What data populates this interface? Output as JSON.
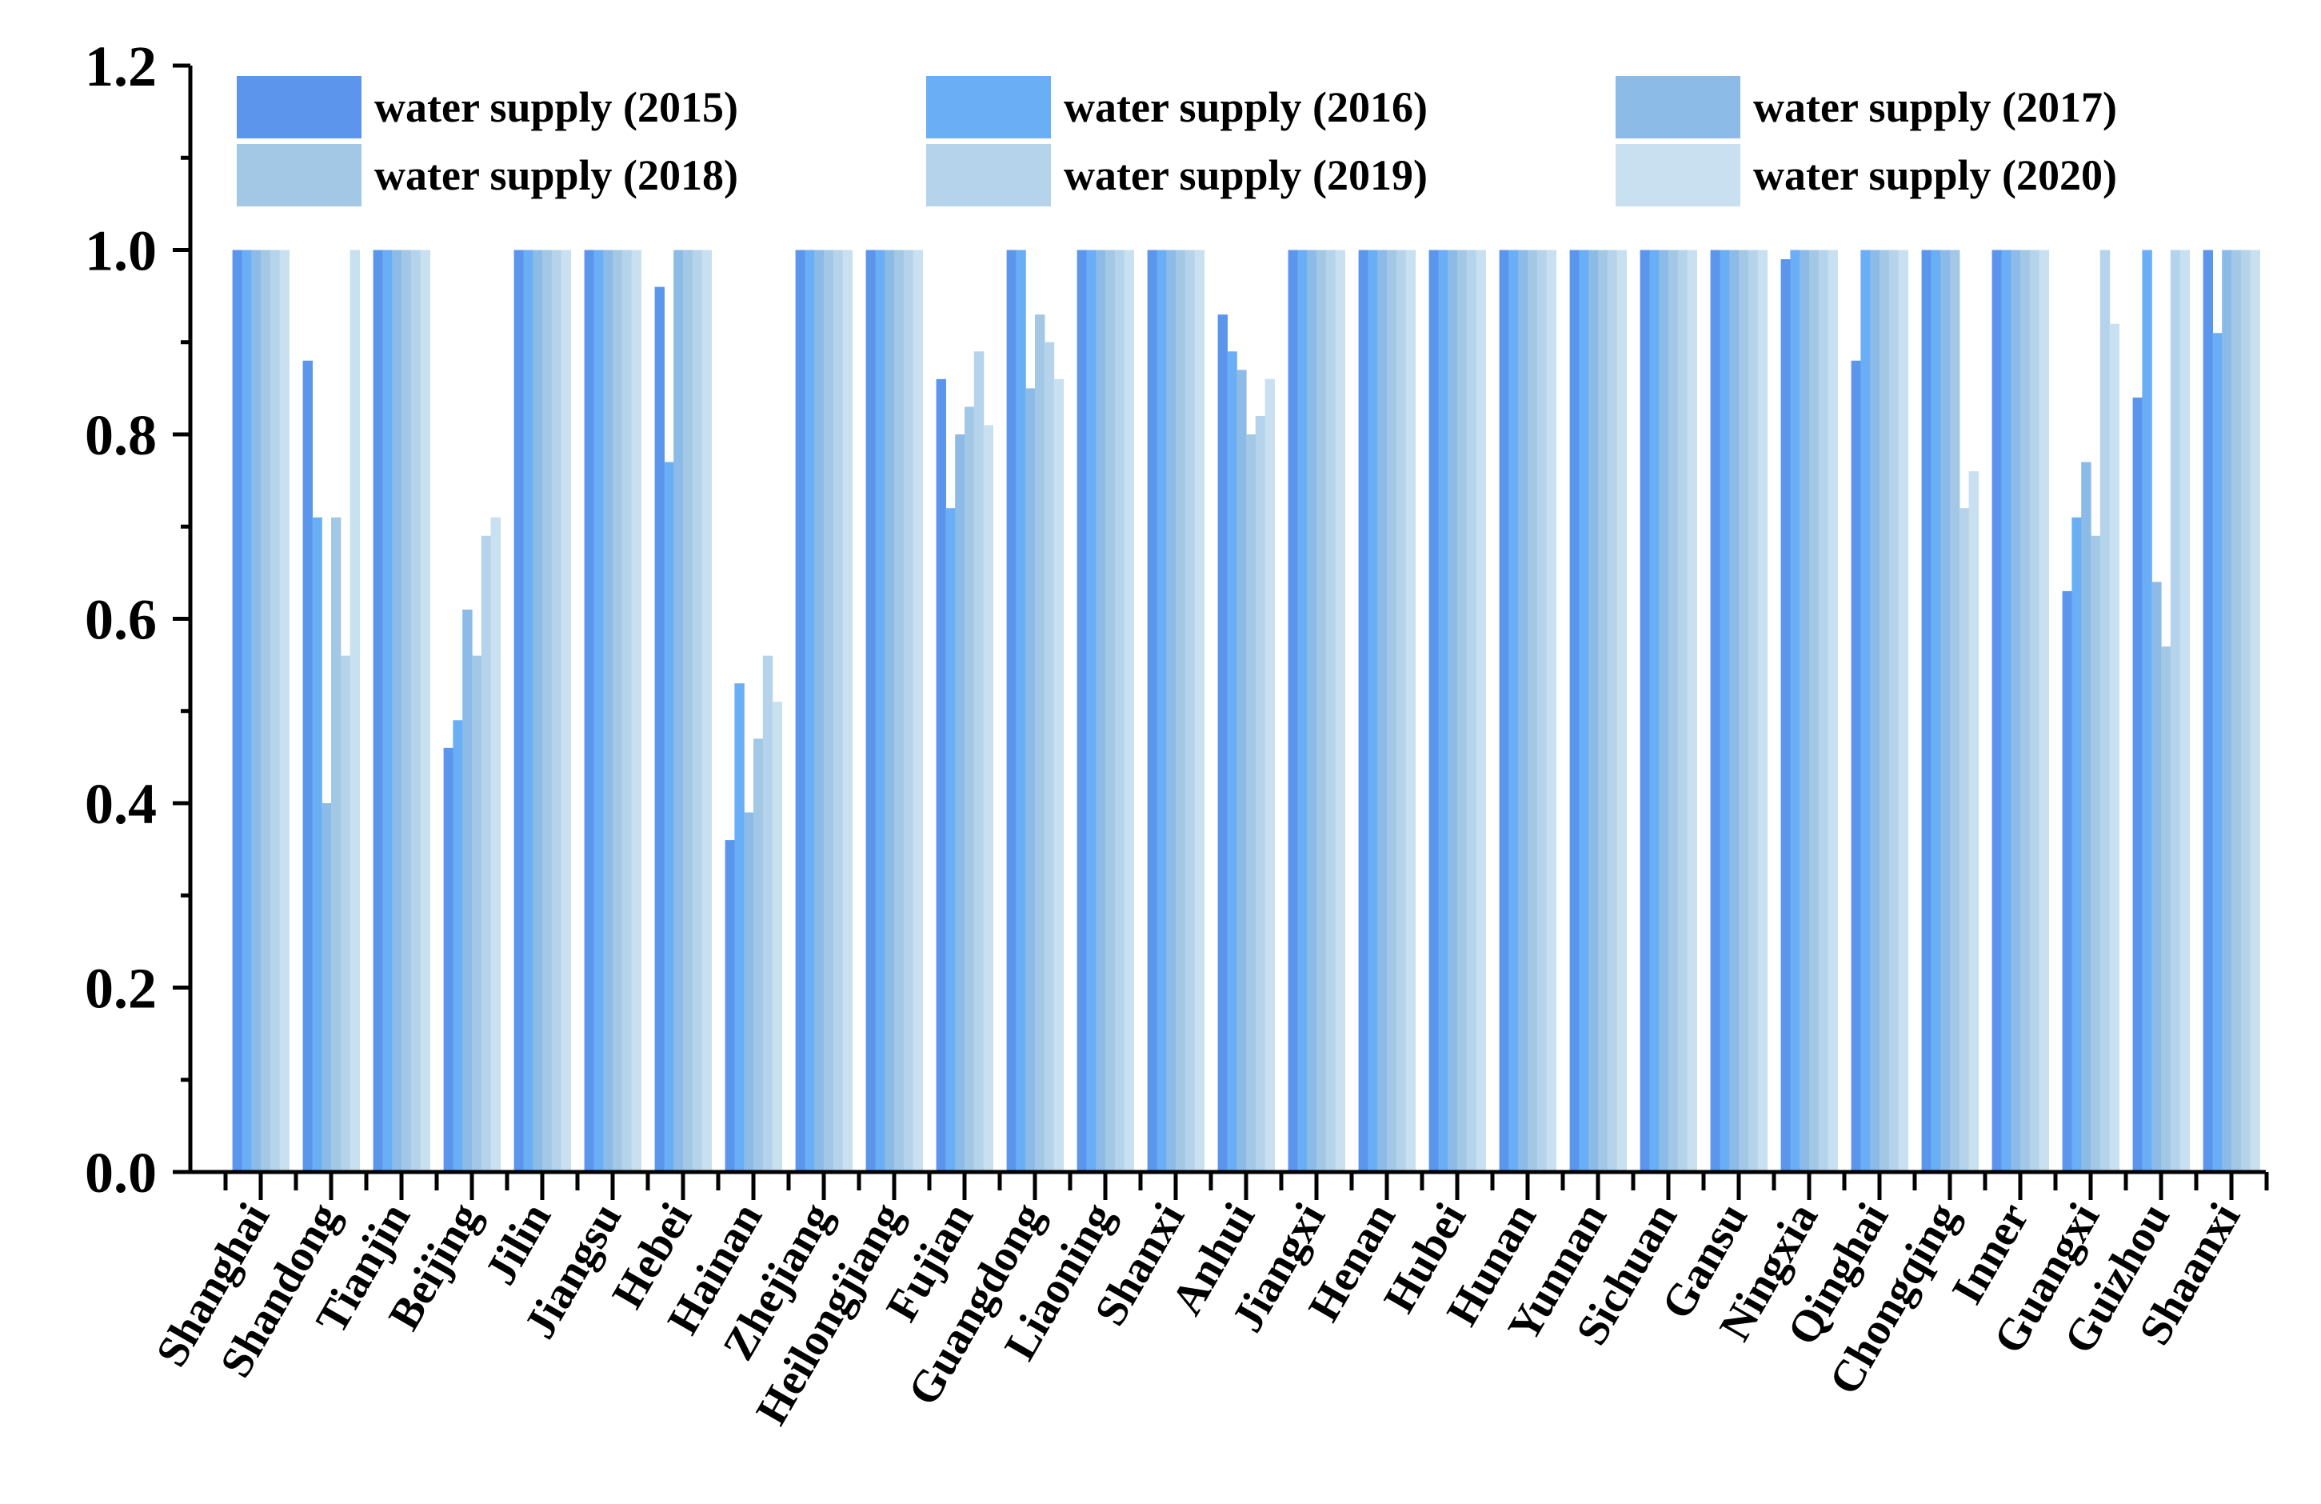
{
  "chart_data": {
    "type": "bar",
    "title": "",
    "xlabel": "",
    "ylabel": "",
    "ylim": [
      0,
      1.2
    ],
    "yticks": [
      "0.0",
      "0.2",
      "0.4",
      "0.6",
      "0.8",
      "1.0",
      "1.2"
    ],
    "legend_position": "top",
    "categories": [
      "Shanghai",
      "Shandong",
      "Tianjin",
      "Beijing",
      "Jilin",
      "Jiangsu",
      "Hebei",
      "Hainan",
      "Zhejiang",
      "Heilongjiang",
      "Fujian",
      "Guangdong",
      "Liaoning",
      "Shanxi",
      "Anhui",
      "Jiangxi",
      "Henan",
      "Hubei",
      "Hunan",
      "Yunnan",
      "Sichuan",
      "Gansu",
      "Ningxia",
      "Qinghai",
      "Chongqing",
      "Inner",
      "Guangxi",
      "Guizhou",
      "Shaanxi"
    ],
    "series": [
      {
        "name": "water supply (2015)",
        "color": "#5b96ec",
        "values": [
          1.0,
          0.88,
          1.0,
          0.46,
          1.0,
          1.0,
          0.96,
          0.36,
          1.0,
          1.0,
          0.86,
          1.0,
          1.0,
          1.0,
          0.93,
          1.0,
          1.0,
          1.0,
          1.0,
          1.0,
          1.0,
          1.0,
          0.99,
          0.88,
          1.0,
          1.0,
          0.63,
          0.84,
          1.0
        ]
      },
      {
        "name": "water supply (2016)",
        "color": "#6aaef5",
        "values": [
          1.0,
          0.71,
          1.0,
          0.49,
          1.0,
          1.0,
          0.77,
          0.53,
          1.0,
          1.0,
          0.72,
          1.0,
          1.0,
          1.0,
          0.89,
          1.0,
          1.0,
          1.0,
          1.0,
          1.0,
          1.0,
          1.0,
          1.0,
          1.0,
          1.0,
          1.0,
          0.71,
          1.0,
          0.91
        ]
      },
      {
        "name": "water supply (2017)",
        "color": "#8cbbe8",
        "values": [
          1.0,
          0.4,
          1.0,
          0.61,
          1.0,
          1.0,
          1.0,
          0.39,
          1.0,
          1.0,
          0.8,
          0.85,
          1.0,
          1.0,
          0.87,
          1.0,
          1.0,
          1.0,
          1.0,
          1.0,
          1.0,
          1.0,
          1.0,
          1.0,
          1.0,
          1.0,
          0.77,
          0.64,
          1.0
        ]
      },
      {
        "name": "water supply (2018)",
        "color": "#a3c8e5",
        "values": [
          1.0,
          0.71,
          1.0,
          0.56,
          1.0,
          1.0,
          1.0,
          0.47,
          1.0,
          1.0,
          0.83,
          0.93,
          1.0,
          1.0,
          0.8,
          1.0,
          1.0,
          1.0,
          1.0,
          1.0,
          1.0,
          1.0,
          1.0,
          1.0,
          1.0,
          1.0,
          0.69,
          0.57,
          1.0
        ]
      },
      {
        "name": "water supply (2019)",
        "color": "#b5d4eb",
        "values": [
          1.0,
          0.56,
          1.0,
          0.69,
          1.0,
          1.0,
          1.0,
          0.56,
          1.0,
          1.0,
          0.89,
          0.9,
          1.0,
          1.0,
          0.82,
          1.0,
          1.0,
          1.0,
          1.0,
          1.0,
          1.0,
          1.0,
          1.0,
          1.0,
          0.72,
          1.0,
          1.0,
          1.0,
          1.0
        ]
      },
      {
        "name": "water supply (2020)",
        "color": "#c8e0ef",
        "values": [
          1.0,
          1.0,
          1.0,
          0.71,
          1.0,
          1.0,
          1.0,
          0.51,
          1.0,
          1.0,
          0.81,
          0.86,
          1.0,
          1.0,
          0.86,
          1.0,
          1.0,
          1.0,
          1.0,
          1.0,
          1.0,
          1.0,
          1.0,
          1.0,
          0.76,
          1.0,
          0.92,
          1.0,
          1.0
        ]
      }
    ]
  }
}
